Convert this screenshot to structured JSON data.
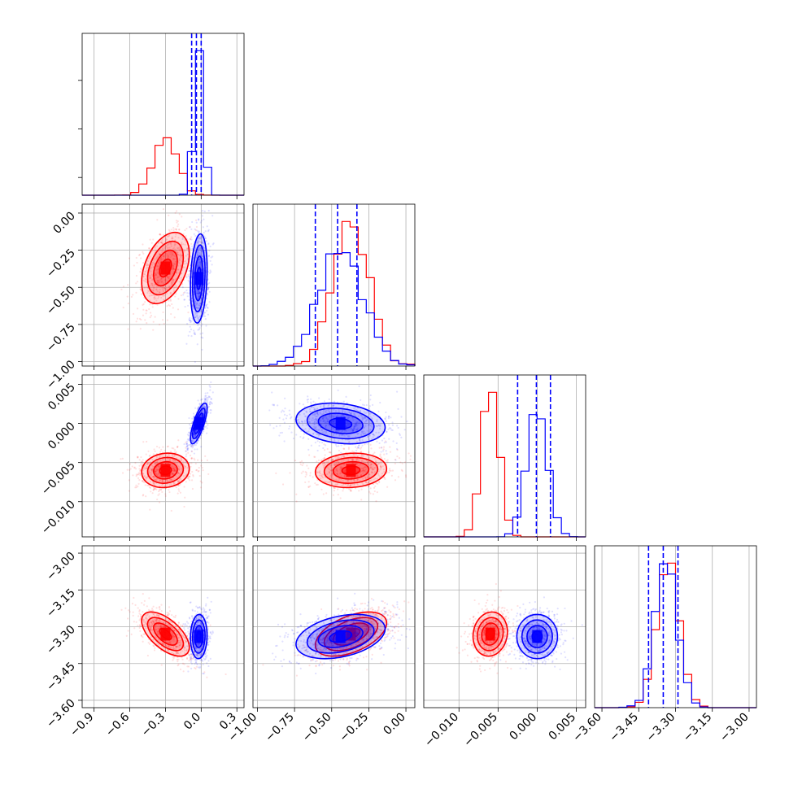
{
  "chart_data": {
    "type": "corner",
    "grid": true,
    "colors": {
      "series_a": "#ff0000",
      "series_b": "#0000ff"
    },
    "parameters": [
      {
        "range": [
          -1.0,
          0.36
        ],
        "ticks": [
          "−0.9",
          "−0.6",
          "−0.3",
          "0.0",
          "0.3"
        ],
        "tick_values": [
          -0.9,
          -0.6,
          -0.3,
          0.0,
          0.3
        ]
      },
      {
        "range": [
          -1.03,
          0.06
        ],
        "ticks": [
          "−1.00",
          "−0.75",
          "−0.50",
          "−0.25",
          "0.00"
        ],
        "tick_values": [
          -1.0,
          -0.75,
          -0.5,
          -0.25,
          0.0
        ]
      },
      {
        "range": [
          -0.0145,
          0.0062
        ],
        "ticks": [
          "−0.010",
          "−0.005",
          "0.000",
          "0.005"
        ],
        "tick_values": [
          -0.01,
          -0.005,
          0.0,
          0.005
        ]
      },
      {
        "range": [
          -3.63,
          -2.97
        ],
        "ticks": [
          "−3.60",
          "−3.45",
          "−3.30",
          "−3.15",
          "−3.00"
        ],
        "tick_values": [
          -3.6,
          -3.45,
          -3.3,
          -3.15,
          -3.0
        ]
      }
    ],
    "series": [
      {
        "color": "#ff0000",
        "mean": [
          -0.3,
          -0.37,
          -0.006,
          -3.33
        ],
        "sd": [
          0.1,
          0.12,
          0.0011,
          0.045
        ]
      },
      {
        "color": "#0000ff",
        "mean": [
          -0.02,
          -0.44,
          0.0,
          -3.34
        ],
        "sd": [
          0.035,
          0.15,
          0.0013,
          0.045
        ]
      }
    ],
    "quantile_lines": {
      "color": "#0000ff",
      "values": [
        [
          -0.08,
          -0.04,
          0.0
        ],
        [
          -0.61,
          -0.46,
          -0.33
        ],
        [
          -0.0025,
          -0.0001,
          0.0017
        ],
        [
          -3.41,
          -3.35,
          -3.29
        ]
      ]
    },
    "correlations": {
      "0-1": [
        0.4,
        0.2
      ],
      "0-2": [
        0.1,
        0.75
      ],
      "1-2": [
        0.1,
        -0.2
      ],
      "0-3": [
        -0.6,
        0.05
      ],
      "1-3": [
        0.5,
        0.35
      ],
      "2-3": [
        0.1,
        0.0
      ]
    }
  }
}
